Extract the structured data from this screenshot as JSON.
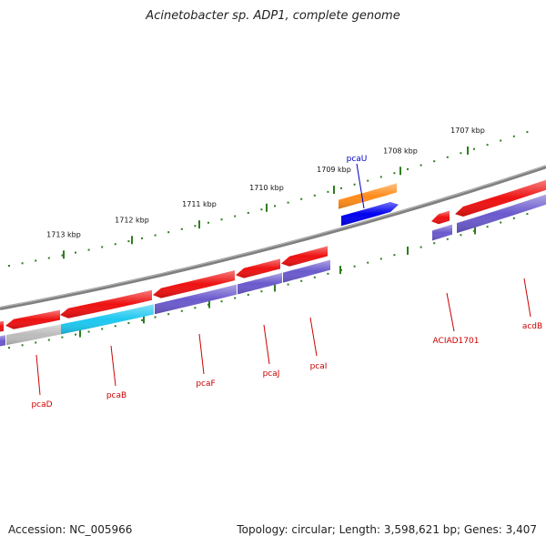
{
  "title": "Acinetobacter sp. ADP1, complete genome",
  "footer": {
    "accession": "Accession: NC_005966",
    "topology": "Topology: circular; Length: 3,598,621 bp; Genes: 3,407"
  },
  "colors": {
    "backbone": "#808080",
    "ticks": "#2e7d1e",
    "gene_forward": "#ff8c1a",
    "gene_reverse": "#ee1111",
    "cds_forward": "#0000ee",
    "cds_reverse": "#6a5acd",
    "cds_cyan": "#1ec8f0",
    "cds_gray": "#bcbcbc",
    "label_forward": "#0000cc",
    "label_reverse": "#cc0000"
  },
  "ruler": {
    "labels": [
      "1713 kbp",
      "1712 kbp",
      "1711 kbp",
      "1710 kbp",
      "1709 kbp",
      "1708 kbp",
      "1707 kbp"
    ]
  },
  "features": [
    {
      "name": "pcaU",
      "strand": "forward",
      "color_key": "gene_forward",
      "cds_color_key": "cds_forward"
    },
    {
      "name": "pcaD",
      "strand": "reverse",
      "color_key": "gene_reverse",
      "cds_color_key": "cds_gray"
    },
    {
      "name": "pcaB",
      "strand": "reverse",
      "color_key": "gene_reverse",
      "cds_color_key": "cds_cyan"
    },
    {
      "name": "pcaF",
      "strand": "reverse",
      "color_key": "gene_reverse",
      "cds_color_key": "cds_reverse"
    },
    {
      "name": "pcaJ",
      "strand": "reverse",
      "color_key": "gene_reverse",
      "cds_color_key": "cds_reverse"
    },
    {
      "name": "pcaI",
      "strand": "reverse",
      "color_key": "gene_reverse",
      "cds_color_key": "cds_reverse"
    },
    {
      "name": "ACIAD1701",
      "strand": "reverse",
      "color_key": "gene_reverse",
      "cds_color_key": "cds_reverse"
    },
    {
      "name": "acdB",
      "strand": "reverse",
      "color_key": "gene_reverse",
      "cds_color_key": "cds_reverse"
    }
  ]
}
